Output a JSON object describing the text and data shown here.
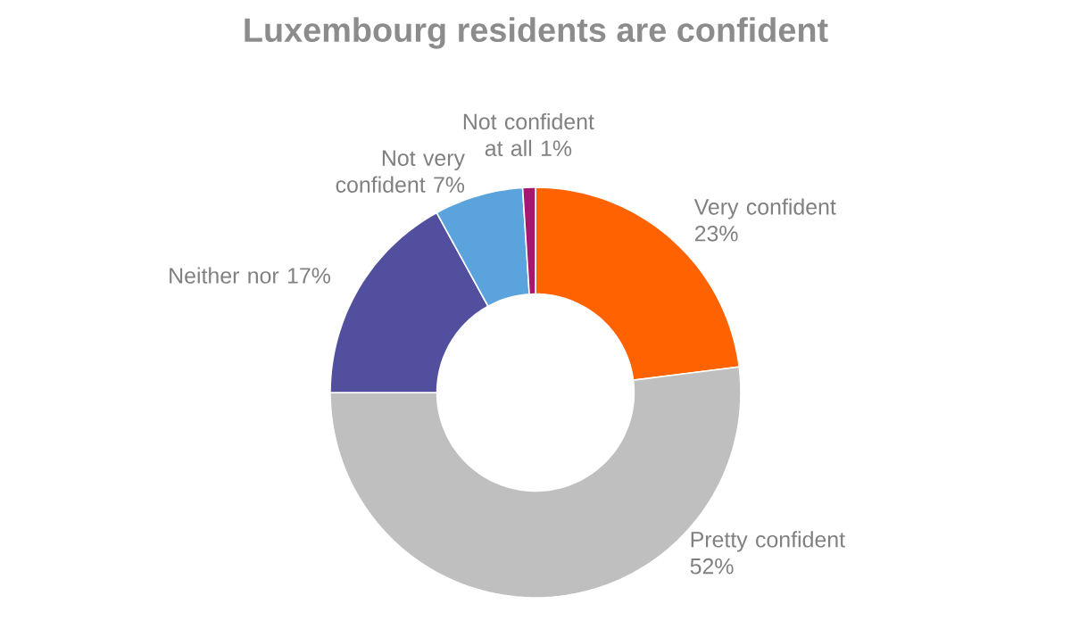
{
  "chart_data": {
    "type": "donut",
    "title": "Luxembourg residents are confident",
    "categories": [
      "Very confident",
      "Pretty confident",
      "Neither nor",
      "Not very confident",
      "Not confident at all"
    ],
    "values": [
      23,
      52,
      17,
      7,
      1
    ],
    "value_labels": [
      "23%",
      "52%",
      "17%",
      "7%",
      "1%"
    ],
    "colors": [
      "#ff6200",
      "#bfbfbf",
      "#524f9e",
      "#5ba3dd",
      "#a8176e"
    ]
  }
}
